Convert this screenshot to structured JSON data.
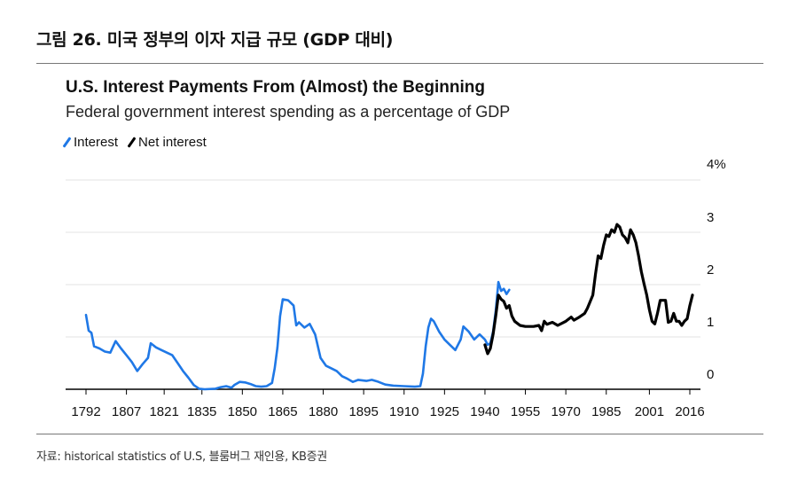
{
  "figure_title": "그림 26. 미국 정부의 이자 지급 규모 (GDP 대비)",
  "source": "자료: historical statistics of U.S, 블룸버그 재인용, KB증권",
  "colors": {
    "interest": "#1f78e6",
    "net_interest": "#000000",
    "grid": "#e3e3e3",
    "axis": "#000000"
  },
  "chart_data": {
    "type": "line",
    "title": "U.S. Interest Payments From (Almost) the Beginning",
    "subtitle": "Federal government interest spending as a percentage of GDP",
    "xlabel": "",
    "ylabel": "",
    "xlim": [
      1792,
      2020
    ],
    "ylim": [
      0,
      4
    ],
    "y_ticks": [
      0,
      1,
      2,
      3,
      4
    ],
    "y_tick_labels": [
      "0",
      "1",
      "2",
      "3",
      "4%"
    ],
    "x_ticks": [
      1792,
      1807,
      1821,
      1835,
      1850,
      1865,
      1880,
      1895,
      1910,
      1925,
      1940,
      1955,
      1970,
      1985,
      2001,
      2016
    ],
    "grid": true,
    "legend_position": "top-left",
    "series": [
      {
        "name": "Interest",
        "color": "#1f78e6",
        "points": [
          [
            1792,
            1.42
          ],
          [
            1793,
            1.12
          ],
          [
            1794,
            1.08
          ],
          [
            1795,
            0.82
          ],
          [
            1797,
            0.78
          ],
          [
            1799,
            0.72
          ],
          [
            1801,
            0.7
          ],
          [
            1803,
            0.92
          ],
          [
            1805,
            0.78
          ],
          [
            1807,
            0.65
          ],
          [
            1809,
            0.52
          ],
          [
            1811,
            0.35
          ],
          [
            1813,
            0.48
          ],
          [
            1815,
            0.6
          ],
          [
            1816,
            0.88
          ],
          [
            1818,
            0.8
          ],
          [
            1820,
            0.75
          ],
          [
            1822,
            0.7
          ],
          [
            1824,
            0.65
          ],
          [
            1826,
            0.5
          ],
          [
            1828,
            0.35
          ],
          [
            1830,
            0.22
          ],
          [
            1832,
            0.08
          ],
          [
            1834,
            0.01
          ],
          [
            1836,
            0.0
          ],
          [
            1840,
            0.01
          ],
          [
            1842,
            0.04
          ],
          [
            1844,
            0.06
          ],
          [
            1846,
            0.03
          ],
          [
            1847,
            0.08
          ],
          [
            1849,
            0.14
          ],
          [
            1851,
            0.13
          ],
          [
            1853,
            0.1
          ],
          [
            1855,
            0.06
          ],
          [
            1857,
            0.05
          ],
          [
            1859,
            0.06
          ],
          [
            1861,
            0.12
          ],
          [
            1862,
            0.4
          ],
          [
            1863,
            0.8
          ],
          [
            1864,
            1.4
          ],
          [
            1865,
            1.72
          ],
          [
            1867,
            1.7
          ],
          [
            1869,
            1.6
          ],
          [
            1870,
            1.22
          ],
          [
            1871,
            1.28
          ],
          [
            1873,
            1.18
          ],
          [
            1875,
            1.25
          ],
          [
            1877,
            1.05
          ],
          [
            1879,
            0.6
          ],
          [
            1881,
            0.45
          ],
          [
            1883,
            0.4
          ],
          [
            1885,
            0.35
          ],
          [
            1887,
            0.25
          ],
          [
            1889,
            0.2
          ],
          [
            1891,
            0.14
          ],
          [
            1893,
            0.18
          ],
          [
            1896,
            0.16
          ],
          [
            1898,
            0.18
          ],
          [
            1900,
            0.15
          ],
          [
            1903,
            0.09
          ],
          [
            1906,
            0.07
          ],
          [
            1910,
            0.06
          ],
          [
            1914,
            0.05
          ],
          [
            1916,
            0.06
          ],
          [
            1917,
            0.3
          ],
          [
            1918,
            0.82
          ],
          [
            1919,
            1.18
          ],
          [
            1920,
            1.35
          ],
          [
            1921,
            1.3
          ],
          [
            1923,
            1.1
          ],
          [
            1925,
            0.95
          ],
          [
            1927,
            0.85
          ],
          [
            1929,
            0.75
          ],
          [
            1931,
            0.95
          ],
          [
            1932,
            1.2
          ],
          [
            1934,
            1.1
          ],
          [
            1936,
            0.95
          ],
          [
            1938,
            1.05
          ],
          [
            1940,
            0.95
          ],
          [
            1941,
            0.85
          ],
          [
            1942,
            0.88
          ],
          [
            1943,
            1.1
          ],
          [
            1944,
            1.5
          ],
          [
            1945,
            2.05
          ],
          [
            1946,
            1.88
          ],
          [
            1947,
            1.92
          ],
          [
            1948,
            1.82
          ],
          [
            1949,
            1.9
          ]
        ]
      },
      {
        "name": "Net interest",
        "color": "#000000",
        "points": [
          [
            1940,
            0.85
          ],
          [
            1941,
            0.68
          ],
          [
            1942,
            0.78
          ],
          [
            1943,
            1.05
          ],
          [
            1944,
            1.4
          ],
          [
            1945,
            1.8
          ],
          [
            1946,
            1.72
          ],
          [
            1947,
            1.68
          ],
          [
            1948,
            1.55
          ],
          [
            1949,
            1.6
          ],
          [
            1950,
            1.4
          ],
          [
            1951,
            1.3
          ],
          [
            1953,
            1.22
          ],
          [
            1955,
            1.2
          ],
          [
            1958,
            1.2
          ],
          [
            1960,
            1.22
          ],
          [
            1961,
            1.12
          ],
          [
            1962,
            1.3
          ],
          [
            1963,
            1.24
          ],
          [
            1965,
            1.28
          ],
          [
            1967,
            1.22
          ],
          [
            1970,
            1.3
          ],
          [
            1972,
            1.38
          ],
          [
            1973,
            1.32
          ],
          [
            1975,
            1.38
          ],
          [
            1977,
            1.45
          ],
          [
            1978,
            1.55
          ],
          [
            1980,
            1.8
          ],
          [
            1981,
            2.2
          ],
          [
            1982,
            2.55
          ],
          [
            1983,
            2.5
          ],
          [
            1984,
            2.75
          ],
          [
            1985,
            2.95
          ],
          [
            1986,
            2.92
          ],
          [
            1987,
            3.05
          ],
          [
            1988,
            3.0
          ],
          [
            1989,
            3.15
          ],
          [
            1990,
            3.1
          ],
          [
            1991,
            2.95
          ],
          [
            1992,
            2.9
          ],
          [
            1993,
            2.8
          ],
          [
            1994,
            3.05
          ],
          [
            1995,
            2.95
          ],
          [
            1996,
            2.8
          ],
          [
            1997,
            2.55
          ],
          [
            1998,
            2.25
          ],
          [
            1999,
            2.02
          ],
          [
            2000,
            1.8
          ],
          [
            2001,
            1.52
          ],
          [
            2002,
            1.3
          ],
          [
            2003,
            1.25
          ],
          [
            2004,
            1.45
          ],
          [
            2005,
            1.7
          ],
          [
            2006,
            1.7
          ],
          [
            2007,
            1.7
          ],
          [
            2008,
            1.28
          ],
          [
            2009,
            1.3
          ],
          [
            2010,
            1.45
          ],
          [
            2011,
            1.3
          ],
          [
            2012,
            1.3
          ],
          [
            2013,
            1.22
          ],
          [
            2014,
            1.3
          ],
          [
            2015,
            1.35
          ],
          [
            2016,
            1.6
          ],
          [
            2017,
            1.8
          ]
        ]
      }
    ]
  }
}
